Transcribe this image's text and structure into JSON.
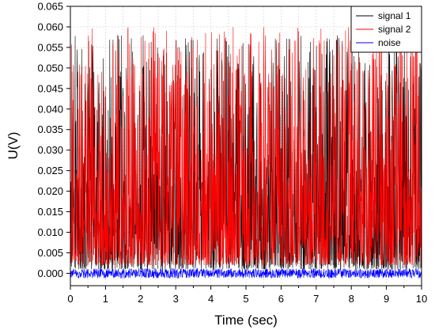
{
  "chart_data": {
    "type": "line",
    "xlabel": "Time (sec)",
    "ylabel": "U(V)",
    "xlim": [
      0,
      10
    ],
    "ylim": [
      -0.003,
      0.065
    ],
    "x_ticks": [
      0,
      1,
      2,
      3,
      4,
      5,
      6,
      7,
      8,
      9,
      10
    ],
    "y_ticks": [
      0.0,
      0.005,
      0.01,
      0.015,
      0.02,
      0.025,
      0.03,
      0.035,
      0.04,
      0.045,
      0.05,
      0.055,
      0.06,
      0.065
    ],
    "x_tick_labels": [
      "0",
      "1",
      "2",
      "3",
      "4",
      "5",
      "6",
      "7",
      "8",
      "9",
      "10"
    ],
    "y_tick_labels": [
      "0.000",
      "0.005",
      "0.010",
      "0.015",
      "0.020",
      "0.025",
      "0.030",
      "0.035",
      "0.040",
      "0.045",
      "0.050",
      "0.055",
      "0.060",
      "0.065"
    ],
    "grid": true,
    "legend_position": "top-right",
    "series": [
      {
        "name": "signal 1",
        "color": "#000000",
        "mean": 0.012,
        "min": 0.001,
        "max": 0.058,
        "samples": 1400
      },
      {
        "name": "signal 2",
        "color": "#ff0000",
        "mean": 0.013,
        "min": 0.002,
        "max": 0.06,
        "samples": 1400
      },
      {
        "name": "noise",
        "color": "#0000ff",
        "mean": 0.0,
        "min": -0.0012,
        "max": 0.0012,
        "samples": 1400
      }
    ]
  }
}
